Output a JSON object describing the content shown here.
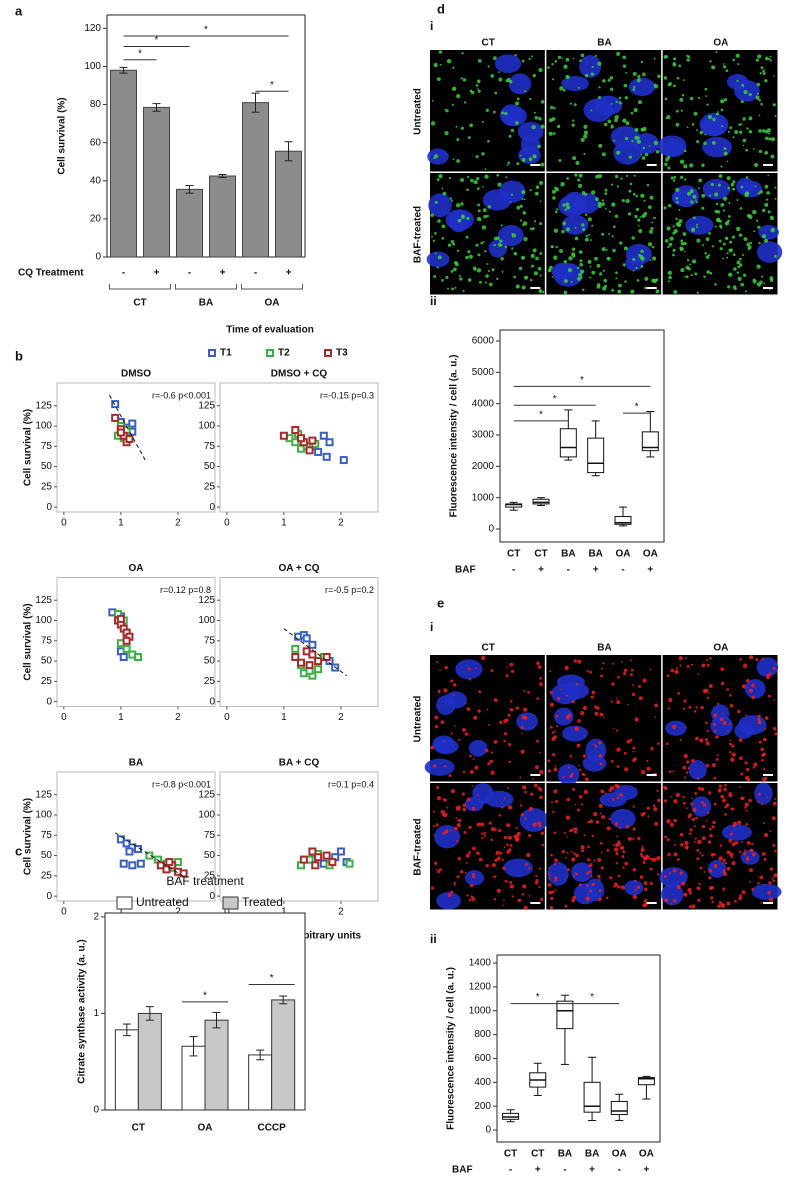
{
  "chart_data": [
    {
      "type": "bar",
      "panel": "a",
      "ylabel": "Cell survival (%)",
      "xlabel": "CQ Treatment",
      "categories": [
        "-",
        "+",
        "-",
        "+",
        "-",
        "+"
      ],
      "groups": [
        "CT",
        "BA",
        "OA"
      ],
      "values": [
        98,
        78.5,
        35.5,
        42.5,
        81,
        55.5
      ],
      "errors": [
        1.5,
        2,
        2,
        0.8,
        5,
        5
      ],
      "color": "#8c8c8c",
      "ylim": [
        0,
        127
      ],
      "yticks": [
        0,
        20,
        40,
        60,
        80,
        100,
        120
      ],
      "brackets": [
        {
          "from": 0,
          "to": 5,
          "y": 116,
          "label": "*"
        },
        {
          "from": 0,
          "to": 2,
          "y": 110.5,
          "label": "*"
        },
        {
          "from": 0,
          "to": 1,
          "y": 103.5,
          "label": "*"
        },
        {
          "from": 4,
          "to": 5,
          "y": 87,
          "label": "*"
        }
      ]
    },
    {
      "type": "scatter",
      "panel": "b",
      "legend_title": "Time of evaluation",
      "series": [
        {
          "name": "T1",
          "color": "#3a5fc0"
        },
        {
          "name": "T2",
          "color": "#3cb043"
        },
        {
          "name": "T3",
          "color": "#a52a2a"
        }
      ],
      "ylabel": "Cell survival (%)",
      "xlabel": "Autophagy arbitrary units",
      "xlim": [
        -0.12,
        2.65
      ],
      "ylim": [
        -6,
        153
      ],
      "xticks": [
        0,
        1,
        2
      ],
      "yticks": [
        0,
        25,
        50,
        75,
        100,
        125
      ],
      "plots": [
        {
          "title": "DMSO",
          "annotation": "r=-0.6 p<0.001",
          "points": [
            {
              "x": [
                0.9,
                1.0,
                1.1,
                1.2,
                1.2,
                1.05
              ],
              "y": [
                127,
                105,
                98,
                103,
                93,
                90
              ]
            },
            {
              "x": [
                0.95,
                1.0,
                1.1,
                1.05
              ],
              "y": [
                88,
                100,
                95,
                85
              ]
            },
            {
              "x": [
                0.9,
                1.0,
                1.05,
                1.1,
                1.0,
                1.15
              ],
              "y": [
                110,
                96,
                88,
                80,
                92,
                84
              ]
            }
          ],
          "fit": {
            "x": [
              0.8,
              1.45
            ],
            "y": [
              138,
              55
            ]
          }
        },
        {
          "title": "DMSO + CQ",
          "annotation": "r=-0.15 p=0.3",
          "points": [
            {
              "x": [
                1.5,
                1.6,
                1.75,
                1.8,
                2.05,
                1.3,
                1.7
              ],
              "y": [
                75,
                68,
                62,
                80,
                58,
                80,
                88
              ]
            },
            {
              "x": [
                1.1,
                1.2,
                1.3,
                1.4,
                1.25,
                1.55
              ],
              "y": [
                85,
                80,
                72,
                75,
                90,
                78
              ]
            },
            {
              "x": [
                1.0,
                1.2,
                1.35,
                1.5,
                1.45,
                1.3
              ],
              "y": [
                88,
                95,
                80,
                82,
                70,
                85
              ]
            }
          ]
        },
        {
          "title": "OA",
          "annotation": "r=0.12 p=0.8",
          "points": [
            {
              "x": [
                0.85,
                1.0,
                1.0,
                1.05,
                1.1
              ],
              "y": [
                110,
                105,
                62,
                55,
                85
              ]
            },
            {
              "x": [
                0.95,
                1.0,
                1.1,
                1.2,
                1.3,
                1.05
              ],
              "y": [
                108,
                72,
                65,
                58,
                55,
                100
              ]
            },
            {
              "x": [
                0.95,
                1.0,
                1.05,
                1.1,
                1.15,
                1.1,
                1.0
              ],
              "y": [
                100,
                95,
                90,
                85,
                80,
                75,
                102
              ]
            }
          ]
        },
        {
          "title": "OA + CQ",
          "annotation": "r=-0.5 p=0.2",
          "points": [
            {
              "x": [
                1.25,
                1.35,
                1.4,
                1.8,
                1.9,
                1.5
              ],
              "y": [
                80,
                82,
                78,
                50,
                42,
                70
              ]
            },
            {
              "x": [
                1.2,
                1.3,
                1.35,
                1.5,
                1.6,
                1.45,
                1.7
              ],
              "y": [
                65,
                45,
                35,
                32,
                40,
                38,
                55
              ]
            },
            {
              "x": [
                1.2,
                1.3,
                1.4,
                1.5,
                1.6,
                1.75,
                1.45
              ],
              "y": [
                55,
                48,
                62,
                58,
                50,
                55,
                45
              ]
            }
          ],
          "fit": {
            "x": [
              1.0,
              2.1
            ],
            "y": [
              90,
              32
            ]
          }
        },
        {
          "title": "BA",
          "annotation": "r=-0.8 p<0.001",
          "points": [
            {
              "x": [
                1.0,
                1.1,
                1.2,
                1.3,
                1.05,
                1.2,
                1.35,
                1.15
              ],
              "y": [
                70,
                65,
                60,
                58,
                40,
                38,
                40,
                55
              ]
            },
            {
              "x": [
                1.5,
                1.65,
                1.8,
                1.9,
                2.0
              ],
              "y": [
                50,
                45,
                40,
                35,
                42
              ]
            },
            {
              "x": [
                1.7,
                1.8,
                1.9,
                2.0,
                2.1,
                1.85
              ],
              "y": [
                38,
                33,
                38,
                30,
                28,
                42
              ]
            }
          ],
          "fit": {
            "x": [
              0.9,
              2.15
            ],
            "y": [
              78,
              22
            ]
          }
        },
        {
          "title": "BA + CQ",
          "annotation": "r=0.1 p=0.4",
          "points": [
            {
              "x": [
                1.5,
                1.7,
                1.9,
                2.0,
                2.1
              ],
              "y": [
                45,
                40,
                48,
                55,
                42
              ]
            },
            {
              "x": [
                1.3,
                1.45,
                1.6,
                1.8,
                2.15
              ],
              "y": [
                38,
                45,
                52,
                38,
                40
              ]
            },
            {
              "x": [
                1.35,
                1.5,
                1.6,
                1.75,
                1.85,
                1.55
              ],
              "y": [
                45,
                55,
                48,
                50,
                42,
                38
              ]
            }
          ]
        }
      ]
    },
    {
      "type": "grouped_bar",
      "panel": "c",
      "legend_title": "BAF treatment",
      "ylabel": "Citrate synthase activity (a. u.)",
      "categories": [
        "CT",
        "OA",
        "CCCP"
      ],
      "series": [
        {
          "name": "Untreated",
          "color": "#ffffff",
          "values": [
            0.83,
            0.66,
            0.57
          ],
          "errors": [
            0.06,
            0.1,
            0.05
          ]
        },
        {
          "name": "Treated",
          "color": "#c8c8c8",
          "values": [
            1.0,
            0.93,
            1.14
          ],
          "errors": [
            0.07,
            0.08,
            0.04
          ]
        }
      ],
      "ylim": [
        0,
        2.04
      ],
      "yticks": [
        0,
        1,
        2
      ],
      "brackets": [
        {
          "category": 1,
          "y": 1.12,
          "label": "*"
        },
        {
          "category": 2,
          "y": 1.3,
          "label": "*"
        }
      ]
    },
    {
      "type": "box",
      "sub": "ii",
      "ylabel": "Fluorescence intensity / cell (a. u.)",
      "xlabel": "BAF",
      "categories": [
        "CT",
        "CT",
        "BA",
        "BA",
        "OA",
        "OA"
      ],
      "treatment": [
        "-",
        "+",
        "-",
        "+",
        "-",
        "+"
      ],
      "boxes": [
        {
          "min": 600,
          "q1": 700,
          "median": 780,
          "q3": 800,
          "max": 850
        },
        {
          "min": 750,
          "q1": 800,
          "median": 850,
          "q3": 950,
          "max": 1000
        },
        {
          "min": 2200,
          "q1": 2300,
          "median": 2600,
          "q3": 3200,
          "max": 3800
        },
        {
          "min": 1700,
          "q1": 1800,
          "median": 2100,
          "q3": 2900,
          "max": 3450
        },
        {
          "min": 100,
          "q1": 150,
          "median": 200,
          "q3": 400,
          "max": 700
        },
        {
          "min": 2300,
          "q1": 2500,
          "median": 2600,
          "q3": 3100,
          "max": 3750
        }
      ],
      "ylim": [
        -415,
        6351
      ],
      "yticks": [
        0,
        1000,
        2000,
        3000,
        4000,
        5000,
        6000
      ],
      "brackets": [
        {
          "from": 0,
          "to": 5,
          "y": 4550,
          "label": "*"
        },
        {
          "from": 0,
          "to": 3,
          "y": 3950,
          "label": "*"
        },
        {
          "from": 0,
          "to": 2,
          "y": 3450,
          "label": "*"
        },
        {
          "from": 4,
          "to": 5,
          "y": 3700,
          "label": "*"
        }
      ]
    },
    {
      "type": "box",
      "sub": "ii",
      "ylabel": "Fluorescence intensity / cell (a. u.)",
      "xlabel": "BAF",
      "categories": [
        "CT",
        "CT",
        "BA",
        "BA",
        "OA",
        "OA"
      ],
      "treatment": [
        "-",
        "+",
        "-",
        "+",
        "-",
        "+"
      ],
      "boxes": [
        {
          "min": 70,
          "q1": 90,
          "median": 110,
          "q3": 140,
          "max": 170
        },
        {
          "min": 290,
          "q1": 360,
          "median": 420,
          "q3": 480,
          "max": 560
        },
        {
          "min": 550,
          "q1": 850,
          "median": 1000,
          "q3": 1080,
          "max": 1130
        },
        {
          "min": 80,
          "q1": 150,
          "median": 200,
          "q3": 400,
          "max": 610
        },
        {
          "min": 80,
          "q1": 130,
          "median": 160,
          "q3": 240,
          "max": 300
        },
        {
          "min": 260,
          "q1": 380,
          "median": 430,
          "q3": 440,
          "max": 450
        }
      ],
      "ylim": [
        -100,
        1467
      ],
      "yticks": [
        0,
        200,
        400,
        600,
        800,
        1000,
        1200,
        1400
      ],
      "brackets": [
        {
          "from": 0,
          "to": 2,
          "y": 1060,
          "label": "*"
        },
        {
          "from": 2,
          "to": 4,
          "y": 1060,
          "label": "*"
        }
      ]
    }
  ],
  "images": [
    {
      "panel": "d",
      "sub": "i",
      "columns": [
        "CT",
        "BA",
        "OA"
      ],
      "rows": [
        "Untreated",
        "BAF-treated"
      ]
    },
    {
      "panel": "e",
      "sub": "i",
      "columns": [
        "CT",
        "BA",
        "OA"
      ],
      "rows": [
        "Untreated",
        "BAF-treated"
      ]
    }
  ]
}
